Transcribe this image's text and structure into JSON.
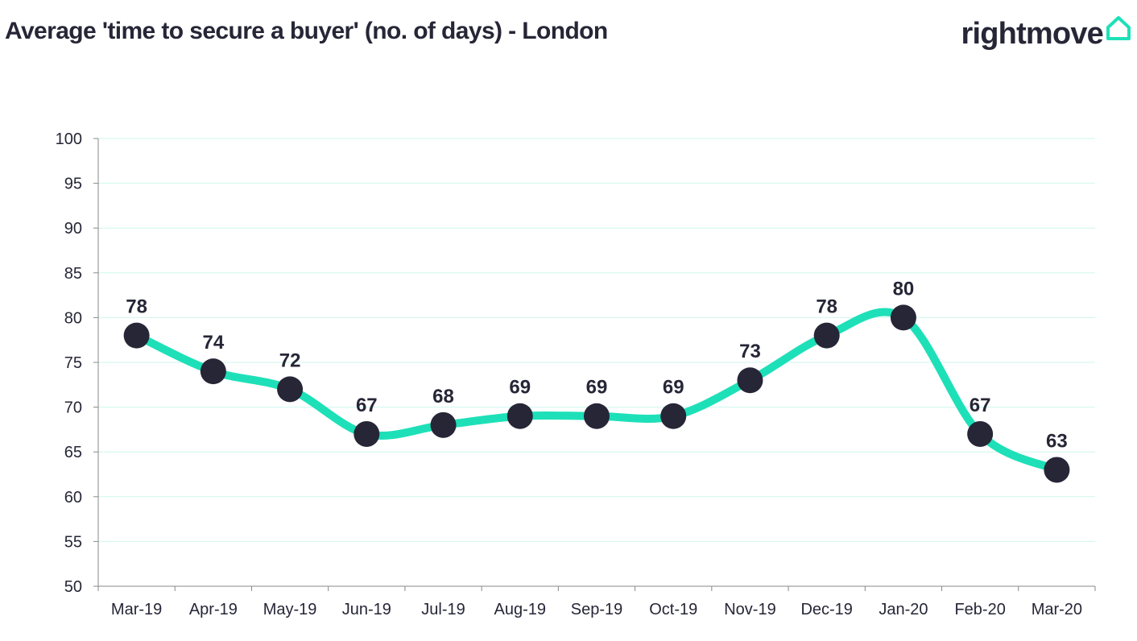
{
  "header": {
    "title": "Average 'time to secure a buyer' (no. of days) - London",
    "logo_text": "rightmove",
    "logo_icon": "house-icon"
  },
  "colors": {
    "line": "#1ee0b8",
    "marker": "#262637",
    "gridline": "#cdf7ee",
    "axis": "#888888",
    "text": "#262637"
  },
  "chart_data": {
    "type": "line",
    "title": "Average 'time to secure a buyer' (no. of days) - London",
    "xlabel": "",
    "ylabel": "",
    "categories": [
      "Mar-19",
      "Apr-19",
      "May-19",
      "Jun-19",
      "Jul-19",
      "Aug-19",
      "Sep-19",
      "Oct-19",
      "Nov-19",
      "Dec-19",
      "Jan-20",
      "Feb-20",
      "Mar-20"
    ],
    "series": [
      {
        "values": [
          78,
          74,
          72,
          67,
          68,
          69,
          69,
          69,
          73,
          78,
          80,
          67,
          63
        ]
      }
    ],
    "ylim": [
      50,
      100
    ],
    "yticks": [
      50,
      55,
      60,
      65,
      70,
      75,
      80,
      85,
      90,
      95,
      100
    ],
    "ytick_labels": [
      "50",
      "55",
      "60",
      "65",
      "70",
      "75",
      "80",
      "85",
      "90",
      "95",
      "100"
    ],
    "grid": true,
    "smooth": true,
    "data_labels": true,
    "legend": "none"
  }
}
